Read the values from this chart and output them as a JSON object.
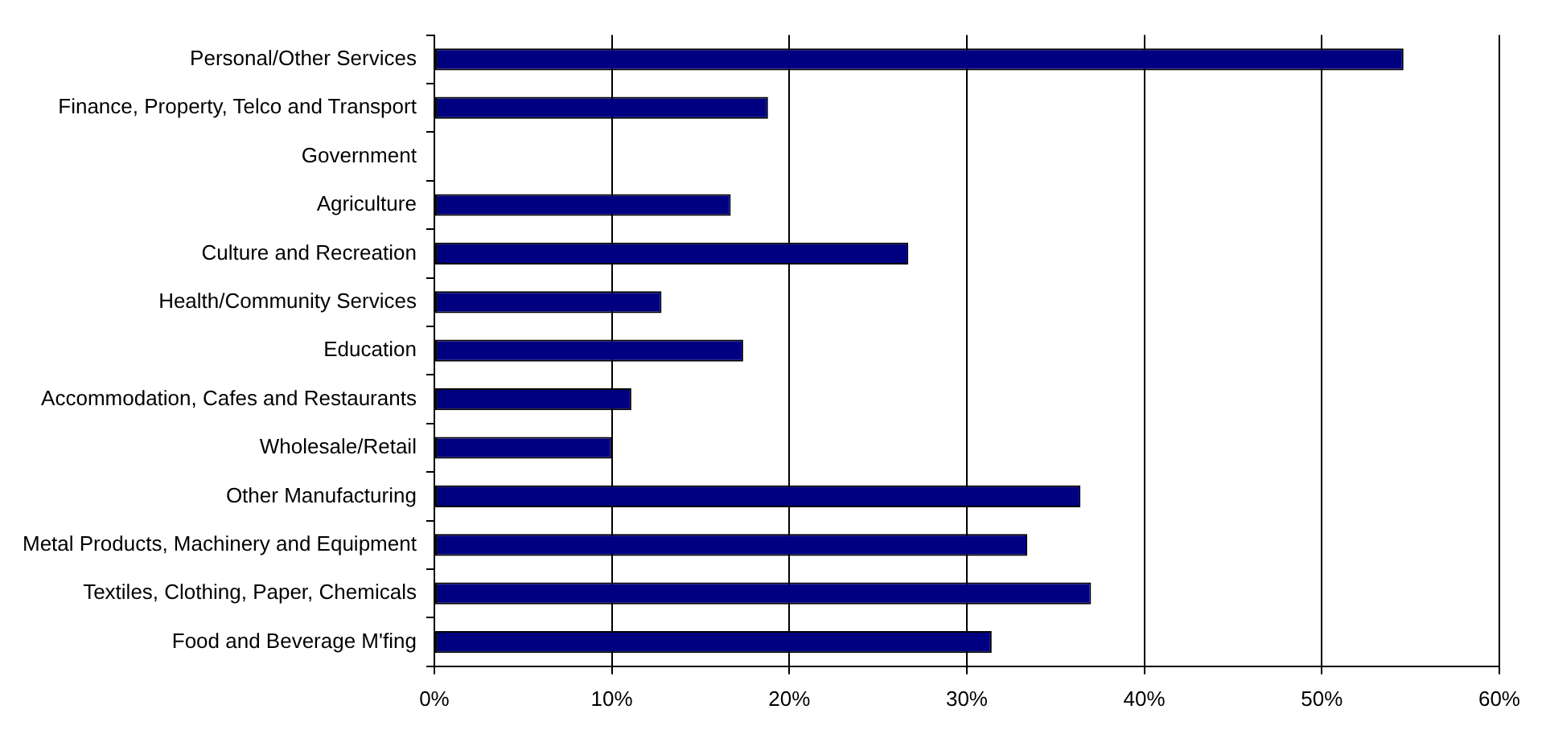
{
  "chart_data": {
    "type": "bar",
    "orientation": "horizontal",
    "categories": [
      "Personal/Other Services",
      "Finance, Property, Telco and Transport",
      "Government",
      "Agriculture",
      "Culture and Recreation",
      "Health/Community Services",
      "Education",
      "Accommodation, Cafes and Restaurants",
      "Wholesale/Retail",
      "Other Manufacturing",
      "Metal Products, Machinery and Equipment",
      "Textiles, Clothing, Paper, Chemicals",
      "Food and Beverage M'fing"
    ],
    "values": [
      54.6,
      18.8,
      0,
      16.7,
      26.7,
      12.8,
      17.4,
      11.1,
      10,
      36.4,
      33.4,
      37,
      31.4
    ],
    "color": "#000080",
    "xlim": [
      0,
      60
    ],
    "xticks": [
      {
        "value": 0,
        "label": "0%"
      },
      {
        "value": 10,
        "label": "10%"
      },
      {
        "value": 20,
        "label": "20%"
      },
      {
        "value": 30,
        "label": "30%"
      },
      {
        "value": 40,
        "label": "40%"
      },
      {
        "value": 50,
        "label": "50%"
      },
      {
        "value": 60,
        "label": "60%"
      }
    ],
    "grid": "x",
    "legend": false
  }
}
